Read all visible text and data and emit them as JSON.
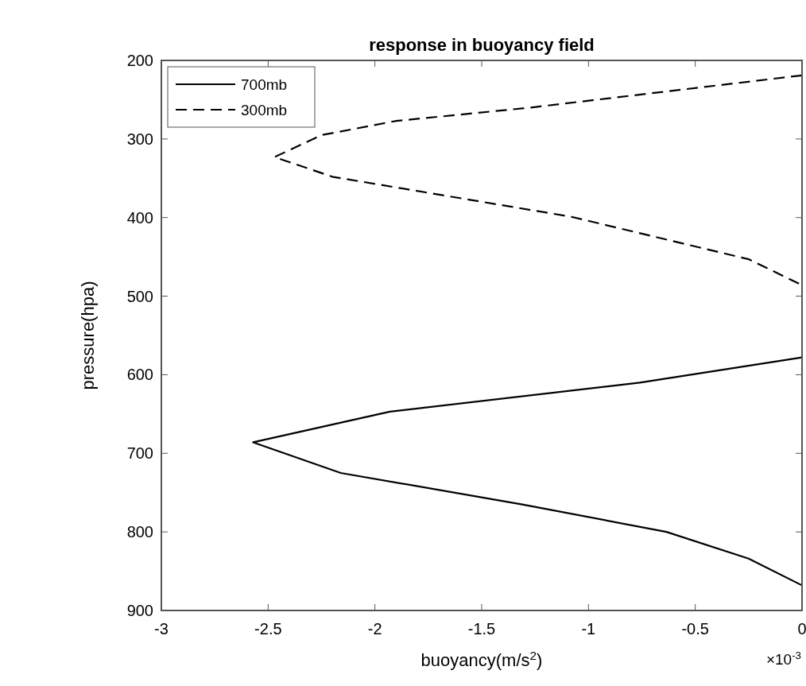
{
  "chart_data": {
    "type": "line",
    "title": "response in buoyancy field",
    "xlabel": "buoyancy(m/s$^{2}$)",
    "ylabel": "pressure(hpa)",
    "annotations": [
      "×10$^{-3}$"
    ],
    "xlim": [
      -3,
      0
    ],
    "xticks": [
      -3,
      -2.5,
      -2,
      -1.5,
      -1,
      -0.5,
      0
    ],
    "ylim": [
      900,
      200
    ],
    "yticks": [
      200,
      300,
      400,
      500,
      600,
      700,
      800,
      900
    ],
    "grid": false,
    "legend": "top left",
    "marker": "none",
    "series": [
      {
        "name": "700mb",
        "color": "#000000",
        "line_style": "solid",
        "x": [
          0,
          -0.76,
          -1.93,
          -2.57,
          -2.16,
          -1.31,
          -0.635,
          -0.25,
          0
        ],
        "values": [
          578,
          610,
          647,
          686,
          725,
          765,
          800,
          834,
          868
        ]
      },
      {
        "name": "300mb",
        "color": "#000000",
        "line_style": "dashed",
        "x": [
          0,
          -1.27,
          -1.9,
          -2.25,
          -2.47,
          -2.2,
          -1.08,
          -0.25,
          0
        ],
        "values": [
          219,
          260,
          277,
          295,
          323,
          348,
          399,
          453,
          486
        ]
      }
    ]
  }
}
